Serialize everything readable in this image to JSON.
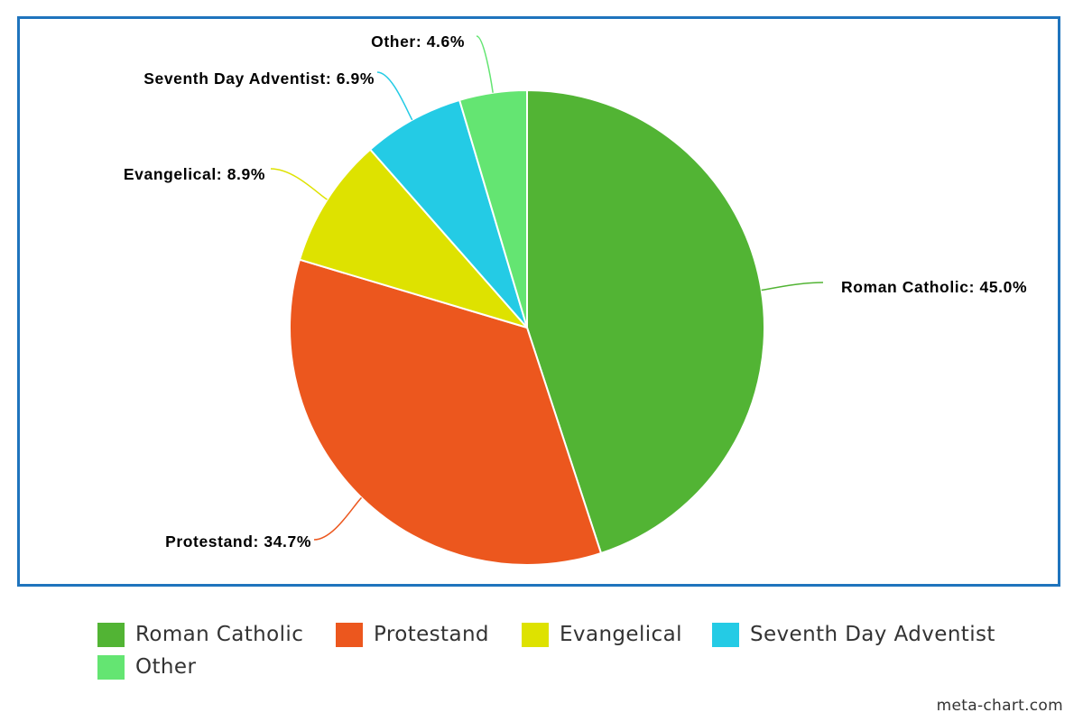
{
  "chart_data": {
    "type": "pie",
    "title": "",
    "slices": [
      {
        "label": "Roman Catholic",
        "value": 45.0,
        "display": "Roman Catholic: 45.0%",
        "color": "#52b434"
      },
      {
        "label": "Protestand",
        "value": 34.7,
        "display": "Protestand: 34.7%",
        "color": "#ec571e"
      },
      {
        "label": "Evangelical",
        "value": 8.9,
        "display": "Evangelical: 8.9%",
        "color": "#dee200"
      },
      {
        "label": "Seventh Day Adventist",
        "value": 6.9,
        "display": "Seventh Day Adventist: 6.9%",
        "color": "#24cbe5"
      },
      {
        "label": "Other",
        "value": 4.6,
        "display": "Other: 4.6%",
        "color": "#64e572"
      }
    ],
    "legend_position": "bottom",
    "border_color": "#1f74bd"
  },
  "footer": {
    "credit": "meta-chart.com"
  }
}
